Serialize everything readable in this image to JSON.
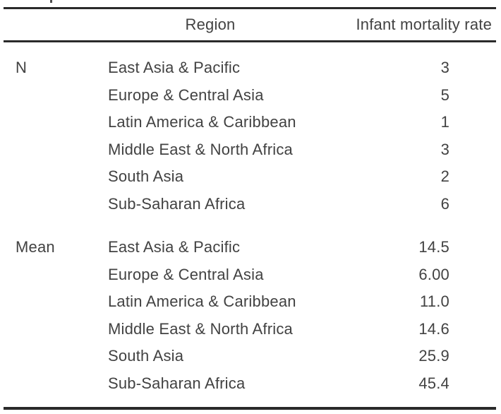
{
  "colors": {
    "background": "#ffffff",
    "text": "#424242",
    "rule": "#2a2a2a"
  },
  "table": {
    "header": {
      "stat": "",
      "region": "Region",
      "value": "Infant mortality rate"
    },
    "sections": [
      {
        "label": "N",
        "rows": [
          {
            "region": "East Asia & Pacific",
            "value": "3"
          },
          {
            "region": "Europe & Central Asia",
            "value": "5"
          },
          {
            "region": "Latin America & Caribbean",
            "value": "1"
          },
          {
            "region": "Middle East & North Africa",
            "value": "3"
          },
          {
            "region": "South Asia",
            "value": "2"
          },
          {
            "region": "Sub-Saharan Africa",
            "value": "6"
          }
        ]
      },
      {
        "label": "Mean",
        "rows": [
          {
            "region": "East Asia & Pacific",
            "value": "14.5"
          },
          {
            "region": "Europe & Central Asia",
            "value": "6.00"
          },
          {
            "region": "Latin America & Caribbean",
            "value": "11.0"
          },
          {
            "region": "Middle East & North Africa",
            "value": "14.6"
          },
          {
            "region": "South Asia",
            "value": "25.9"
          },
          {
            "region": "Sub-Saharan Africa",
            "value": "45.4"
          }
        ]
      }
    ]
  },
  "chart_data": {
    "type": "table",
    "columns": [
      "",
      "Region",
      "Infant mortality rate"
    ],
    "rows": [
      [
        "N",
        "East Asia & Pacific",
        "3"
      ],
      [
        "",
        "Europe & Central Asia",
        "5"
      ],
      [
        "",
        "Latin America & Caribbean",
        "1"
      ],
      [
        "",
        "Middle East & North Africa",
        "3"
      ],
      [
        "",
        "South Asia",
        "2"
      ],
      [
        "",
        "Sub-Saharan Africa",
        "6"
      ],
      [
        "Mean",
        "East Asia & Pacific",
        "14.5"
      ],
      [
        "",
        "Europe & Central Asia",
        "6.00"
      ],
      [
        "",
        "Latin America & Caribbean",
        "11.0"
      ],
      [
        "",
        "Middle East & North Africa",
        "14.6"
      ],
      [
        "",
        "South Asia",
        "25.9"
      ],
      [
        "",
        "Sub-Saharan Africa",
        "45.4"
      ]
    ]
  }
}
